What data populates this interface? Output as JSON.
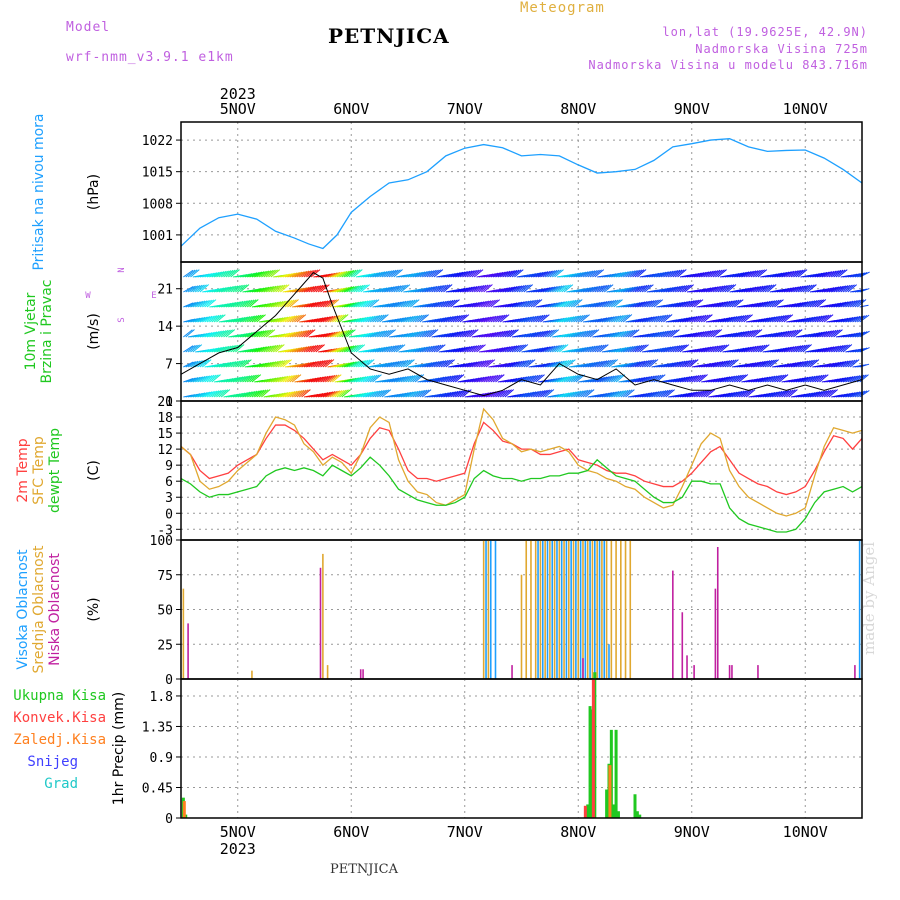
{
  "header": {
    "model_label": "Model",
    "model_name": "wrf-nmm_v3.9.1  e1km",
    "station": "PETNJICA",
    "meteogram": "Meteogram",
    "lonlat": "lon,lat (19.9625E, 42.9N)",
    "elevation": "Nadmorska Visina 725m",
    "model_elevation": "Nadmorska Visina u modelu 843.716m",
    "footer_station": "PETNJICA",
    "watermark": "made by Angel"
  },
  "colors": {
    "pressure": "#1ea0ff",
    "temp2m": "#ff4040",
    "sfc": "#e0a830",
    "dewpt": "#20c820",
    "high_cloud": "#1ea0ff",
    "mid_cloud": "#e0a830",
    "low_cloud": "#c020a0",
    "total_rain": "#20c820",
    "conv_rain": "#ff4040",
    "frz_rain": "#ff8020",
    "snow": "#4040ff",
    "hail": "#20c8c8",
    "title_purple": "#c060e0",
    "meteogram_orange": "#e0b040"
  },
  "chart_data": [
    {
      "type": "line",
      "name": "pressure",
      "label_lines": [
        "Pritisak na nivou mora"
      ],
      "unit": "(hPa)",
      "top_year": "2023",
      "x_ticks": [
        "5NOV",
        "6NOV",
        "7NOV",
        "8NOV",
        "9NOV",
        "10NOV"
      ],
      "x_tick_hours": [
        12,
        36,
        60,
        84,
        108,
        132
      ],
      "x_range_hours": [
        0,
        144
      ],
      "ylim": [
        995,
        1026
      ],
      "yticks": [
        1001,
        1008,
        1015,
        1022
      ],
      "series": [
        {
          "color_key": "pressure",
          "hours": [
            0,
            4,
            8,
            12,
            16,
            20,
            24,
            27,
            30,
            33,
            36,
            40,
            44,
            48,
            52,
            56,
            60,
            64,
            68,
            72,
            76,
            80,
            84,
            88,
            92,
            96,
            100,
            104,
            108,
            112,
            116,
            120,
            124,
            128,
            132,
            136,
            140,
            144
          ],
          "values": [
            998.5,
            1002.5,
            1004.8,
            1005.6,
            1004.5,
            1001.8,
            1000.3,
            999,
            998,
            1001,
            1006,
            1009.5,
            1012.5,
            1013.2,
            1015,
            1018.5,
            1020.2,
            1021,
            1020.3,
            1018.5,
            1018.8,
            1018.5,
            1016.5,
            1014.7,
            1015,
            1015.5,
            1017.5,
            1020.5,
            1021.2,
            1022,
            1022.3,
            1020.5,
            1019.5,
            1019.7,
            1019.8,
            1018,
            1015.5,
            1012.5
          ]
        }
      ]
    },
    {
      "type": "wind",
      "name": "wind",
      "label_lines": [
        "10m Vjetar",
        "Brzina i Pravac"
      ],
      "unit": "(m/s)",
      "compass": [
        "N",
        "E",
        "S",
        "W"
      ],
      "x_range_hours": [
        0,
        144
      ],
      "ylim": [
        0,
        26
      ],
      "yticks": [
        0,
        7,
        14,
        21
      ],
      "speed": {
        "hours": [
          0,
          4,
          8,
          12,
          16,
          20,
          24,
          26,
          28,
          30,
          32,
          36,
          40,
          44,
          48,
          52,
          56,
          60,
          64,
          68,
          72,
          76,
          80,
          84,
          88,
          92,
          96,
          100,
          104,
          108,
          112,
          116,
          120,
          124,
          128,
          132,
          136,
          140,
          144
        ],
        "values": [
          5,
          7,
          9,
          10,
          13,
          16,
          20,
          22,
          24,
          23,
          18,
          9,
          6,
          5,
          6,
          4,
          3,
          2,
          1,
          2,
          4,
          3,
          7,
          5,
          4,
          6,
          3,
          4,
          3,
          2,
          2,
          3,
          2,
          3,
          2,
          3,
          2,
          3,
          4
        ]
      }
    },
    {
      "type": "line",
      "name": "temperature",
      "label_lines": [
        "2m Temp",
        "SFC Temp",
        "dewpt Temp"
      ],
      "unit": "(C)",
      "x_range_hours": [
        0,
        144
      ],
      "ylim": [
        -5,
        21
      ],
      "yticks": [
        -3,
        0,
        3,
        6,
        9,
        12,
        15,
        18,
        21
      ],
      "series": [
        {
          "color_key": "temp2m",
          "hours": [
            0,
            2,
            4,
            6,
            8,
            10,
            12,
            14,
            16,
            18,
            20,
            22,
            24,
            26,
            28,
            30,
            32,
            34,
            36,
            38,
            40,
            42,
            44,
            46,
            48,
            50,
            52,
            54,
            56,
            58,
            60,
            62,
            64,
            66,
            68,
            70,
            72,
            74,
            76,
            78,
            80,
            82,
            84,
            86,
            88,
            90,
            92,
            94,
            96,
            98,
            100,
            102,
            104,
            106,
            108,
            110,
            112,
            114,
            116,
            118,
            120,
            122,
            124,
            126,
            128,
            130,
            132,
            134,
            136,
            138,
            140,
            142,
            144
          ],
          "values": [
            12.5,
            11,
            8,
            6.5,
            7,
            7.5,
            9,
            10,
            11,
            14,
            16.5,
            16.5,
            15.5,
            14,
            12,
            10,
            11,
            10,
            9,
            11,
            14,
            16,
            15.5,
            12,
            8,
            6.5,
            6.5,
            6,
            6.5,
            7,
            7.5,
            13,
            17,
            15.5,
            13.5,
            13,
            12,
            12,
            11,
            11,
            11.5,
            12,
            10,
            9.5,
            9,
            8,
            7.5,
            7.5,
            7,
            6,
            5.5,
            5,
            5,
            6,
            7.5,
            9.5,
            11.5,
            12.5,
            10,
            7.5,
            6.5,
            5.5,
            5,
            4,
            3.5,
            4,
            5,
            8,
            11.5,
            14.5,
            14,
            12,
            14
          ]
        },
        {
          "color_key": "sfc",
          "hours": [
            0,
            2,
            4,
            6,
            8,
            10,
            12,
            14,
            16,
            18,
            20,
            22,
            24,
            26,
            28,
            30,
            32,
            34,
            36,
            38,
            40,
            42,
            44,
            46,
            48,
            50,
            52,
            54,
            56,
            58,
            60,
            62,
            64,
            66,
            68,
            70,
            72,
            74,
            76,
            78,
            80,
            82,
            84,
            86,
            88,
            90,
            92,
            94,
            96,
            98,
            100,
            102,
            104,
            106,
            108,
            110,
            112,
            114,
            116,
            118,
            120,
            122,
            124,
            126,
            128,
            130,
            132,
            134,
            136,
            138,
            140,
            142,
            144
          ],
          "values": [
            12.5,
            11,
            6,
            4.5,
            5,
            6,
            8,
            9.5,
            11,
            15,
            18,
            17.5,
            16.5,
            13,
            11.5,
            9,
            10.5,
            9.5,
            7.5,
            11,
            16,
            18,
            17,
            10,
            6,
            4,
            3.5,
            2,
            1.5,
            2.5,
            3.5,
            12,
            19.5,
            17.5,
            14,
            13,
            11.5,
            12,
            11.5,
            12,
            12.5,
            11.5,
            9,
            8,
            7.5,
            6.5,
            6,
            5,
            4.5,
            3,
            2,
            1,
            1.5,
            5,
            9,
            13,
            15,
            14,
            8,
            5,
            3,
            2,
            1,
            0,
            -0.5,
            0,
            1,
            7,
            12.5,
            16,
            15.5,
            15,
            15.5
          ]
        },
        {
          "color_key": "dewpt",
          "hours": [
            0,
            2,
            4,
            6,
            8,
            10,
            12,
            14,
            16,
            18,
            20,
            22,
            24,
            26,
            28,
            30,
            32,
            34,
            36,
            38,
            40,
            42,
            44,
            46,
            48,
            50,
            52,
            54,
            56,
            58,
            60,
            62,
            64,
            66,
            68,
            70,
            72,
            74,
            76,
            78,
            80,
            82,
            84,
            86,
            88,
            90,
            92,
            94,
            96,
            98,
            100,
            102,
            104,
            106,
            108,
            110,
            112,
            114,
            116,
            118,
            120,
            122,
            124,
            126,
            128,
            130,
            132,
            134,
            136,
            138,
            140,
            142,
            144
          ],
          "values": [
            6.5,
            5.5,
            4,
            3,
            3.5,
            3.5,
            4,
            4.5,
            5,
            7,
            8,
            8.5,
            8,
            8.5,
            8,
            7,
            9,
            8,
            7,
            8.5,
            10.5,
            9,
            7,
            4.5,
            3.5,
            2.5,
            2,
            1.5,
            1.5,
            2,
            3,
            6.5,
            8,
            7,
            6.5,
            6.5,
            6,
            6.5,
            6.5,
            7,
            7,
            7.5,
            7.5,
            8,
            10,
            8.5,
            7,
            6.5,
            6,
            4.5,
            3,
            2,
            2,
            3,
            6,
            6,
            5.5,
            5.5,
            1,
            -1,
            -2,
            -2.5,
            -3,
            -3.5,
            -3.5,
            -3,
            -1,
            2,
            4,
            4.5,
            5,
            4,
            5
          ]
        }
      ]
    },
    {
      "type": "bar",
      "name": "clouds",
      "label_lines": [
        "Visoka Oblacnost",
        "Srednja Oblacnost",
        "Niska Oblacnost"
      ],
      "unit": "(%)",
      "x_range_hours": [
        0,
        144
      ],
      "ylim": [
        0,
        100
      ],
      "yticks": [
        0,
        25,
        50,
        75,
        100
      ],
      "series": [
        {
          "color_key": "mid_cloud",
          "hours": [
            0.5,
            15,
            30,
            31,
            64,
            65,
            72,
            73,
            74,
            75,
            76,
            77,
            78,
            79,
            80,
            81,
            82,
            83,
            84,
            85,
            86,
            87,
            88,
            89,
            90,
            91,
            92,
            93,
            94,
            95
          ],
          "values": [
            65,
            6,
            90,
            10,
            100,
            100,
            75,
            100,
            100,
            100,
            100,
            100,
            100,
            100,
            100,
            100,
            100,
            100,
            100,
            100,
            100,
            100,
            100,
            100,
            100,
            100,
            100,
            100,
            100,
            100
          ]
        },
        {
          "color_key": "high_cloud",
          "hours": [
            64.5,
            65.5,
            66.5,
            75.5,
            76.5,
            77.5,
            78.5,
            79.5,
            80.5,
            81.5,
            82.5,
            83.5,
            84.5,
            85.5,
            86.5,
            87.5,
            88.5,
            89.5,
            90.5,
            143.5
          ],
          "values": [
            100,
            100,
            100,
            100,
            100,
            100,
            100,
            100,
            100,
            100,
            100,
            100,
            100,
            100,
            100,
            100,
            100,
            100,
            25,
            100
          ]
        },
        {
          "color_key": "low_cloud",
          "hours": [
            1.5,
            29.5,
            38,
            38.5,
            70,
            85,
            104,
            106,
            107,
            108.5,
            113,
            113.5,
            116,
            116.5,
            122,
            142.5
          ],
          "values": [
            40,
            80,
            7,
            7,
            10,
            15,
            78,
            48,
            17,
            10,
            65,
            95,
            10,
            10,
            10,
            10
          ]
        }
      ]
    },
    {
      "type": "bar",
      "name": "precipitation",
      "label_lines": [
        "Ukupna  Kisa",
        "Konvek.Kisa",
        "Zaledj.Kisa",
        "Snijeg",
        "Grad"
      ],
      "unit": "1hr Precip (mm)",
      "x_range_hours": [
        0,
        144
      ],
      "ylim": [
        0,
        2.05
      ],
      "yticks": [
        0,
        0.45,
        0.9,
        1.35,
        1.8
      ],
      "bottom_year": "2023",
      "series": [
        {
          "color_key": "total_rain",
          "hours": [
            0.5,
            1,
            86,
            86.5,
            87,
            87.5,
            90,
            90.5,
            91,
            91.5,
            92,
            92.5,
            96,
            96.5,
            97
          ],
          "values": [
            0.3,
            0.05,
            0.2,
            1.65,
            1.6,
            2.15,
            0.42,
            0.8,
            1.3,
            0.2,
            1.3,
            0.1,
            0.35,
            0.1,
            0.05
          ]
        },
        {
          "color_key": "conv_rain",
          "hours": [
            85.5,
            87.2
          ],
          "values": [
            0.18,
            2.05
          ]
        },
        {
          "color_key": "frz_rain",
          "hours": [
            0.7,
            90.7
          ],
          "values": [
            0.25,
            0.78
          ]
        }
      ]
    }
  ]
}
